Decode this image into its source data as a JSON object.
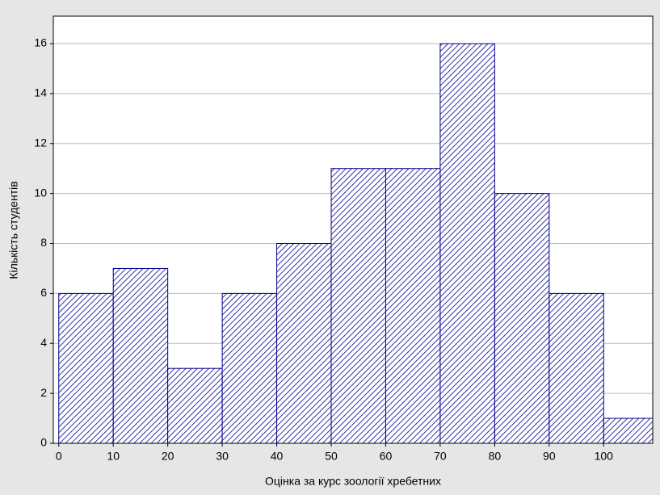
{
  "chart_data": {
    "type": "histogram",
    "x_label": "Оцінка за курс зоології хребетних",
    "y_label": "Кількість студентів",
    "bins": [
      0,
      10,
      20,
      30,
      40,
      50,
      60,
      70,
      80,
      90,
      100,
      110
    ],
    "counts": [
      6,
      7,
      3,
      6,
      8,
      11,
      11,
      16,
      10,
      6,
      1
    ],
    "color": "#00008b",
    "xlim": [
      -1,
      109
    ],
    "xticks": [
      0,
      10,
      20,
      30,
      40,
      50,
      60,
      70,
      80,
      90,
      100
    ],
    "ylim": [
      0,
      17.1
    ],
    "yticks": [
      0,
      2,
      4,
      6,
      8,
      10,
      12,
      14,
      16
    ],
    "grid": true
  }
}
